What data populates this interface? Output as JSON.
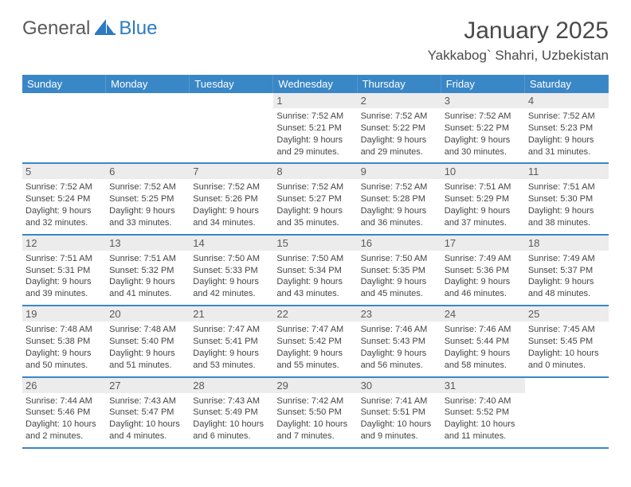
{
  "brand": {
    "name1": "General",
    "name2": "Blue"
  },
  "title": "January 2025",
  "location": "Yakkabog` Shahri, Uzbekistan",
  "colors": {
    "header_bg": "#3a87c7",
    "header_fg": "#ffffff",
    "daynum_bg": "#ececec",
    "border": "#3a87c7",
    "text": "#333333"
  },
  "layout": {
    "columns": 7,
    "rows": 5
  },
  "days_of_week": [
    "Sunday",
    "Monday",
    "Tuesday",
    "Wednesday",
    "Thursday",
    "Friday",
    "Saturday"
  ],
  "cells": [
    {
      "day": "",
      "sunrise": "",
      "sunset": "",
      "daylight": ""
    },
    {
      "day": "",
      "sunrise": "",
      "sunset": "",
      "daylight": ""
    },
    {
      "day": "",
      "sunrise": "",
      "sunset": "",
      "daylight": ""
    },
    {
      "day": "1",
      "sunrise": "Sunrise: 7:52 AM",
      "sunset": "Sunset: 5:21 PM",
      "daylight": "Daylight: 9 hours and 29 minutes."
    },
    {
      "day": "2",
      "sunrise": "Sunrise: 7:52 AM",
      "sunset": "Sunset: 5:22 PM",
      "daylight": "Daylight: 9 hours and 29 minutes."
    },
    {
      "day": "3",
      "sunrise": "Sunrise: 7:52 AM",
      "sunset": "Sunset: 5:22 PM",
      "daylight": "Daylight: 9 hours and 30 minutes."
    },
    {
      "day": "4",
      "sunrise": "Sunrise: 7:52 AM",
      "sunset": "Sunset: 5:23 PM",
      "daylight": "Daylight: 9 hours and 31 minutes."
    },
    {
      "day": "5",
      "sunrise": "Sunrise: 7:52 AM",
      "sunset": "Sunset: 5:24 PM",
      "daylight": "Daylight: 9 hours and 32 minutes."
    },
    {
      "day": "6",
      "sunrise": "Sunrise: 7:52 AM",
      "sunset": "Sunset: 5:25 PM",
      "daylight": "Daylight: 9 hours and 33 minutes."
    },
    {
      "day": "7",
      "sunrise": "Sunrise: 7:52 AM",
      "sunset": "Sunset: 5:26 PM",
      "daylight": "Daylight: 9 hours and 34 minutes."
    },
    {
      "day": "8",
      "sunrise": "Sunrise: 7:52 AM",
      "sunset": "Sunset: 5:27 PM",
      "daylight": "Daylight: 9 hours and 35 minutes."
    },
    {
      "day": "9",
      "sunrise": "Sunrise: 7:52 AM",
      "sunset": "Sunset: 5:28 PM",
      "daylight": "Daylight: 9 hours and 36 minutes."
    },
    {
      "day": "10",
      "sunrise": "Sunrise: 7:51 AM",
      "sunset": "Sunset: 5:29 PM",
      "daylight": "Daylight: 9 hours and 37 minutes."
    },
    {
      "day": "11",
      "sunrise": "Sunrise: 7:51 AM",
      "sunset": "Sunset: 5:30 PM",
      "daylight": "Daylight: 9 hours and 38 minutes."
    },
    {
      "day": "12",
      "sunrise": "Sunrise: 7:51 AM",
      "sunset": "Sunset: 5:31 PM",
      "daylight": "Daylight: 9 hours and 39 minutes."
    },
    {
      "day": "13",
      "sunrise": "Sunrise: 7:51 AM",
      "sunset": "Sunset: 5:32 PM",
      "daylight": "Daylight: 9 hours and 41 minutes."
    },
    {
      "day": "14",
      "sunrise": "Sunrise: 7:50 AM",
      "sunset": "Sunset: 5:33 PM",
      "daylight": "Daylight: 9 hours and 42 minutes."
    },
    {
      "day": "15",
      "sunrise": "Sunrise: 7:50 AM",
      "sunset": "Sunset: 5:34 PM",
      "daylight": "Daylight: 9 hours and 43 minutes."
    },
    {
      "day": "16",
      "sunrise": "Sunrise: 7:50 AM",
      "sunset": "Sunset: 5:35 PM",
      "daylight": "Daylight: 9 hours and 45 minutes."
    },
    {
      "day": "17",
      "sunrise": "Sunrise: 7:49 AM",
      "sunset": "Sunset: 5:36 PM",
      "daylight": "Daylight: 9 hours and 46 minutes."
    },
    {
      "day": "18",
      "sunrise": "Sunrise: 7:49 AM",
      "sunset": "Sunset: 5:37 PM",
      "daylight": "Daylight: 9 hours and 48 minutes."
    },
    {
      "day": "19",
      "sunrise": "Sunrise: 7:48 AM",
      "sunset": "Sunset: 5:38 PM",
      "daylight": "Daylight: 9 hours and 50 minutes."
    },
    {
      "day": "20",
      "sunrise": "Sunrise: 7:48 AM",
      "sunset": "Sunset: 5:40 PM",
      "daylight": "Daylight: 9 hours and 51 minutes."
    },
    {
      "day": "21",
      "sunrise": "Sunrise: 7:47 AM",
      "sunset": "Sunset: 5:41 PM",
      "daylight": "Daylight: 9 hours and 53 minutes."
    },
    {
      "day": "22",
      "sunrise": "Sunrise: 7:47 AM",
      "sunset": "Sunset: 5:42 PM",
      "daylight": "Daylight: 9 hours and 55 minutes."
    },
    {
      "day": "23",
      "sunrise": "Sunrise: 7:46 AM",
      "sunset": "Sunset: 5:43 PM",
      "daylight": "Daylight: 9 hours and 56 minutes."
    },
    {
      "day": "24",
      "sunrise": "Sunrise: 7:46 AM",
      "sunset": "Sunset: 5:44 PM",
      "daylight": "Daylight: 9 hours and 58 minutes."
    },
    {
      "day": "25",
      "sunrise": "Sunrise: 7:45 AM",
      "sunset": "Sunset: 5:45 PM",
      "daylight": "Daylight: 10 hours and 0 minutes."
    },
    {
      "day": "26",
      "sunrise": "Sunrise: 7:44 AM",
      "sunset": "Sunset: 5:46 PM",
      "daylight": "Daylight: 10 hours and 2 minutes."
    },
    {
      "day": "27",
      "sunrise": "Sunrise: 7:43 AM",
      "sunset": "Sunset: 5:47 PM",
      "daylight": "Daylight: 10 hours and 4 minutes."
    },
    {
      "day": "28",
      "sunrise": "Sunrise: 7:43 AM",
      "sunset": "Sunset: 5:49 PM",
      "daylight": "Daylight: 10 hours and 6 minutes."
    },
    {
      "day": "29",
      "sunrise": "Sunrise: 7:42 AM",
      "sunset": "Sunset: 5:50 PM",
      "daylight": "Daylight: 10 hours and 7 minutes."
    },
    {
      "day": "30",
      "sunrise": "Sunrise: 7:41 AM",
      "sunset": "Sunset: 5:51 PM",
      "daylight": "Daylight: 10 hours and 9 minutes."
    },
    {
      "day": "31",
      "sunrise": "Sunrise: 7:40 AM",
      "sunset": "Sunset: 5:52 PM",
      "daylight": "Daylight: 10 hours and 11 minutes."
    },
    {
      "day": "",
      "sunrise": "",
      "sunset": "",
      "daylight": ""
    }
  ]
}
